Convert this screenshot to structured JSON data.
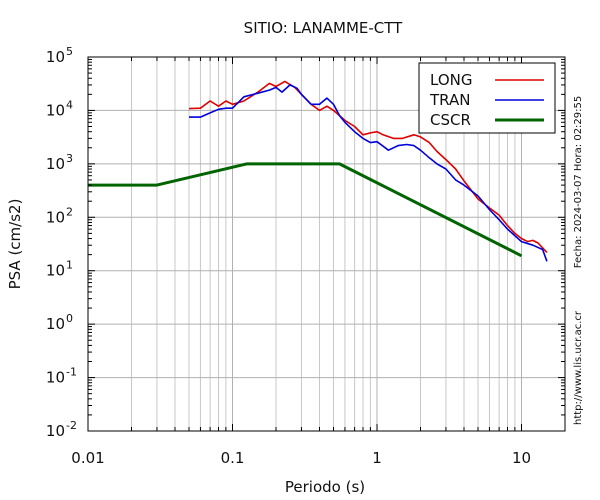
{
  "chart_data": {
    "type": "line",
    "title": "SITIO: LANAMME-CTT",
    "xlabel": "Periodo (s)",
    "ylabel": "PSA (cm/s2)",
    "xscale": "log",
    "yscale": "log",
    "xlim": [
      0.01,
      20
    ],
    "ylim": [
      0.01,
      100000
    ],
    "x_ticks": [
      {
        "value": 0.01,
        "label": "0.01"
      },
      {
        "value": 0.1,
        "label": "0.1"
      },
      {
        "value": 1,
        "label": "1"
      },
      {
        "value": 10,
        "label": "10"
      }
    ],
    "y_ticks": [
      {
        "value": 0.01,
        "base": "10",
        "exp": "-2"
      },
      {
        "value": 0.1,
        "base": "10",
        "exp": "-1"
      },
      {
        "value": 1,
        "base": "10",
        "exp": "0"
      },
      {
        "value": 10,
        "base": "10",
        "exp": "1"
      },
      {
        "value": 100,
        "base": "10",
        "exp": "2"
      },
      {
        "value": 1000,
        "base": "10",
        "exp": "3"
      },
      {
        "value": 10000,
        "base": "10",
        "exp": "4"
      },
      {
        "value": 100000,
        "base": "10",
        "exp": "5"
      }
    ],
    "grid": true,
    "legend_position": "top-right",
    "series": [
      {
        "name": "LONG",
        "color": "#e00000",
        "points": [
          [
            0.05,
            10800
          ],
          [
            0.06,
            11000
          ],
          [
            0.07,
            15000
          ],
          [
            0.08,
            12000
          ],
          [
            0.09,
            15000
          ],
          [
            0.1,
            13000
          ],
          [
            0.12,
            15000
          ],
          [
            0.15,
            22000
          ],
          [
            0.18,
            32000
          ],
          [
            0.2,
            28000
          ],
          [
            0.23,
            35000
          ],
          [
            0.27,
            27000
          ],
          [
            0.3,
            20000
          ],
          [
            0.35,
            13000
          ],
          [
            0.4,
            10000
          ],
          [
            0.45,
            12000
          ],
          [
            0.5,
            10000
          ],
          [
            0.6,
            6500
          ],
          [
            0.7,
            5000
          ],
          [
            0.8,
            3500
          ],
          [
            0.9,
            3800
          ],
          [
            1.0,
            4000
          ],
          [
            1.1,
            3500
          ],
          [
            1.3,
            3000
          ],
          [
            1.5,
            3000
          ],
          [
            1.8,
            3500
          ],
          [
            2.0,
            3200
          ],
          [
            2.3,
            2500
          ],
          [
            2.6,
            1700
          ],
          [
            3.0,
            1200
          ],
          [
            3.5,
            800
          ],
          [
            4.0,
            480
          ],
          [
            5.0,
            220
          ],
          [
            6.0,
            150
          ],
          [
            7.0,
            110
          ],
          [
            8.0,
            70
          ],
          [
            9.0,
            50
          ],
          [
            10.0,
            40
          ],
          [
            11.0,
            35
          ],
          [
            12.0,
            37
          ],
          [
            13.0,
            33
          ],
          [
            15.0,
            22
          ]
        ]
      },
      {
        "name": "TRAN",
        "color": "#0000dd",
        "points": [
          [
            0.05,
            7500
          ],
          [
            0.06,
            7500
          ],
          [
            0.07,
            9000
          ],
          [
            0.08,
            10500
          ],
          [
            0.09,
            11000
          ],
          [
            0.1,
            11000
          ],
          [
            0.12,
            18000
          ],
          [
            0.15,
            21000
          ],
          [
            0.18,
            24000
          ],
          [
            0.2,
            27000
          ],
          [
            0.22,
            22000
          ],
          [
            0.25,
            30000
          ],
          [
            0.28,
            26000
          ],
          [
            0.3,
            20000
          ],
          [
            0.35,
            13000
          ],
          [
            0.4,
            13000
          ],
          [
            0.45,
            17000
          ],
          [
            0.5,
            13000
          ],
          [
            0.55,
            8000
          ],
          [
            0.6,
            6000
          ],
          [
            0.7,
            4000
          ],
          [
            0.8,
            3000
          ],
          [
            0.9,
            2500
          ],
          [
            1.0,
            2600
          ],
          [
            1.2,
            1800
          ],
          [
            1.4,
            2200
          ],
          [
            1.6,
            2300
          ],
          [
            1.8,
            2200
          ],
          [
            2.0,
            1800
          ],
          [
            2.3,
            1300
          ],
          [
            2.6,
            1000
          ],
          [
            3.0,
            800
          ],
          [
            3.5,
            500
          ],
          [
            4.0,
            400
          ],
          [
            5.0,
            250
          ],
          [
            6.0,
            140
          ],
          [
            7.0,
            90
          ],
          [
            8.0,
            60
          ],
          [
            10.0,
            35
          ],
          [
            12.0,
            30
          ],
          [
            14.0,
            25
          ],
          [
            15.0,
            15
          ]
        ]
      },
      {
        "name": "CSCR",
        "color": "#006400",
        "points": [
          [
            0.01,
            400
          ],
          [
            0.03,
            400
          ],
          [
            0.125,
            1000
          ],
          [
            0.55,
            1000
          ],
          [
            10,
            19
          ]
        ]
      }
    ]
  },
  "side_text": {
    "timestamp": "Fecha: 2024-03-07 Hora: 02:29:55",
    "url": "http://www.lis.ucr.ac.cr"
  }
}
